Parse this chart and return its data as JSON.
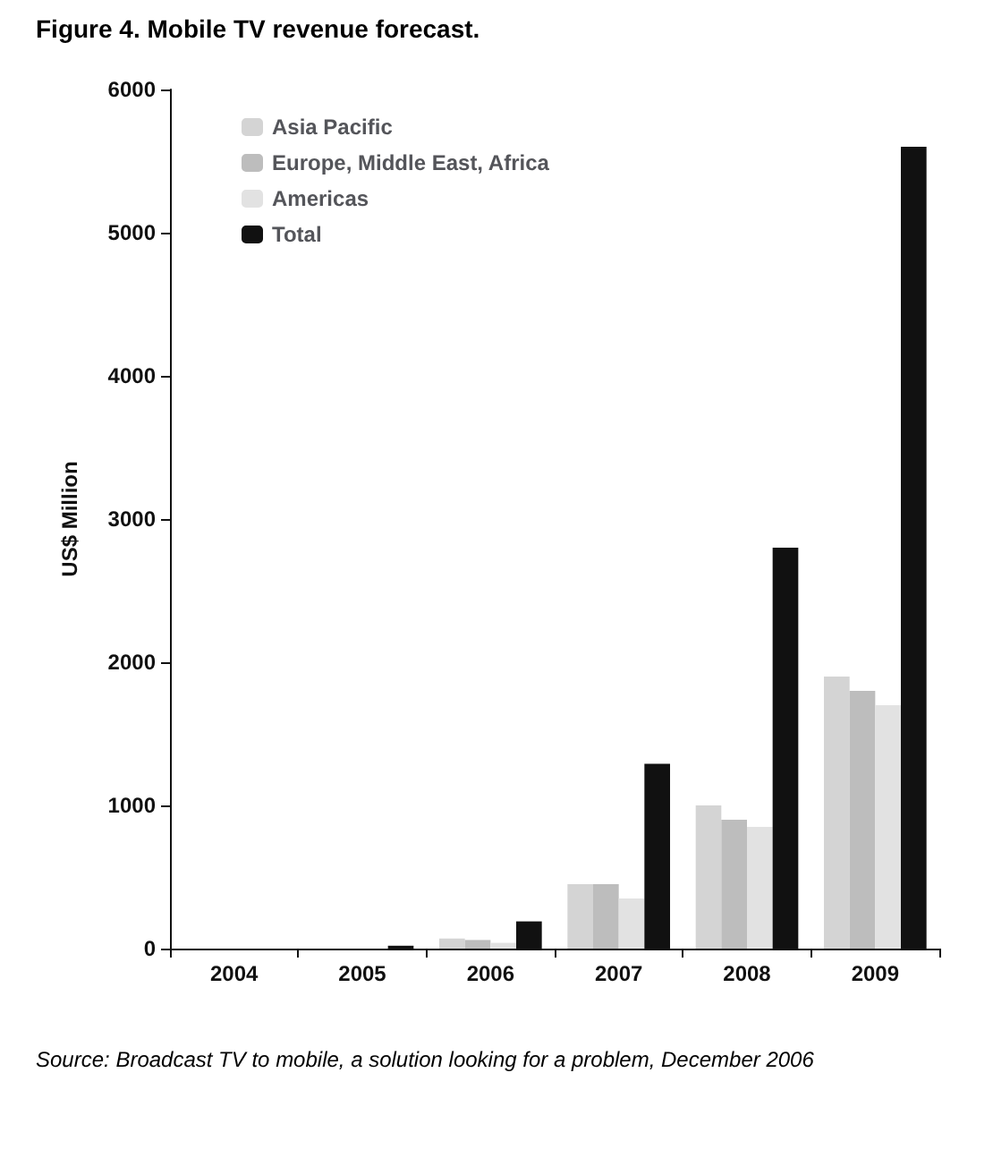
{
  "chart_data": {
    "type": "bar",
    "title": "Figure 4. Mobile TV revenue forecast.",
    "ylabel": "US$ Million",
    "categories": [
      "2004",
      "2005",
      "2006",
      "2007",
      "2008",
      "2009"
    ],
    "series": [
      {
        "name": "Asia Pacific",
        "color": "#d4d4d4",
        "values": [
          0,
          0,
          70,
          450,
          1000,
          1900
        ]
      },
      {
        "name": "Europe, Middle East, Africa",
        "color": "#bdbdbd",
        "values": [
          0,
          0,
          60,
          450,
          900,
          1800
        ]
      },
      {
        "name": "Americas",
        "color": "#e2e2e2",
        "values": [
          0,
          0,
          40,
          350,
          850,
          1700
        ]
      },
      {
        "name": "Total",
        "color": "#111111",
        "values": [
          0,
          20,
          190,
          1290,
          2800,
          5600
        ]
      }
    ],
    "ylim": [
      0,
      6000
    ],
    "yticks": [
      0,
      1000,
      2000,
      3000,
      4000,
      5000,
      6000
    ],
    "grid": false,
    "legend": "top left",
    "annotations": [
      "Source: Broadcast TV to mobile, a solution looking for a problem, December 2006"
    ]
  }
}
